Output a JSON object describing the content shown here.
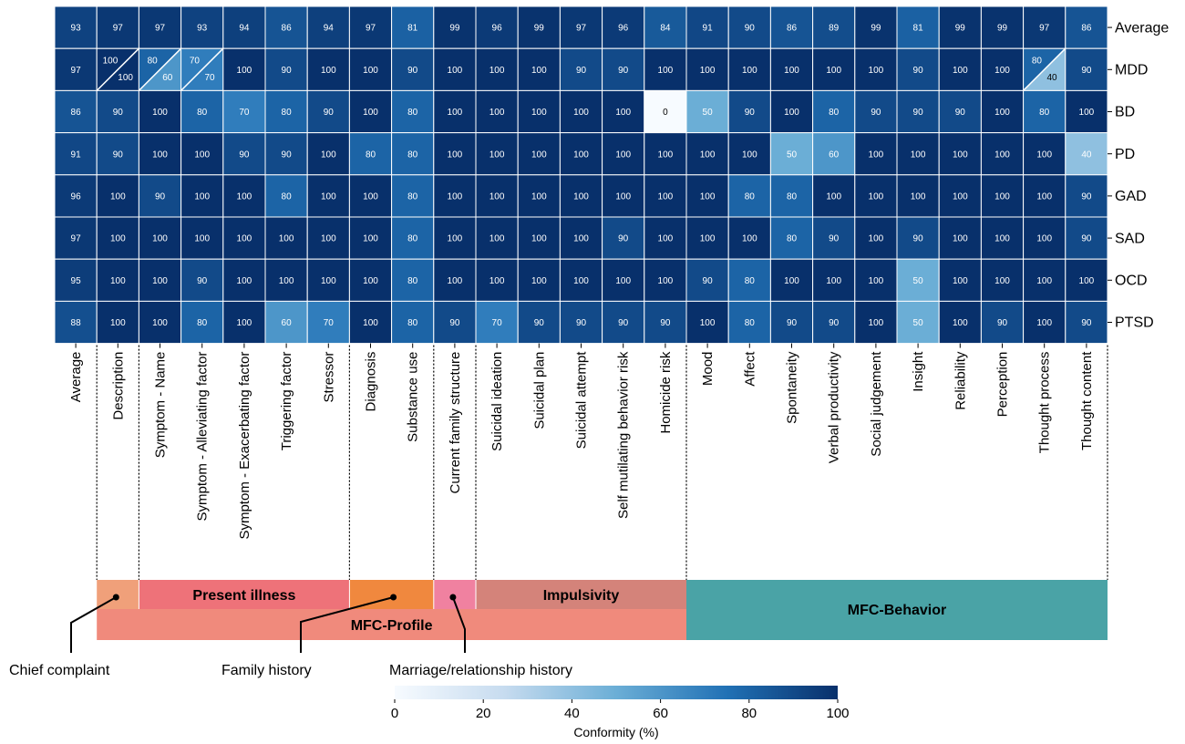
{
  "chart_data": {
    "type": "heatmap",
    "rows": [
      "Average",
      "MDD",
      "BD",
      "PD",
      "GAD",
      "SAD",
      "OCD",
      "PTSD"
    ],
    "columns": [
      "Average",
      "Description",
      "Symptom - Name",
      "Symptom - Alleviating factor",
      "Symptom - Exacerbating factor",
      "Triggering factor",
      "Stressor",
      "Diagnosis",
      "Substance use",
      "Current family structure",
      "Suicidal ideation",
      "Suicidal plan",
      "Suicidal attempt",
      "Self mutilating behavior risk",
      "Homicide risk",
      "Mood",
      "Affect",
      "Spontaneity",
      "Verbal productivity",
      "Social judgement",
      "Insight",
      "Reliability",
      "Perception",
      "Thought process",
      "Thought content"
    ],
    "values": [
      [
        93,
        97,
        97,
        93,
        94,
        86,
        94,
        97,
        81,
        99,
        96,
        99,
        97,
        96,
        84,
        91,
        90,
        86,
        89,
        99,
        81,
        99,
        99,
        97,
        86
      ],
      [
        97,
        null,
        null,
        null,
        100,
        90,
        100,
        100,
        90,
        100,
        100,
        100,
        90,
        90,
        100,
        100,
        100,
        100,
        100,
        100,
        90,
        100,
        100,
        null,
        90
      ],
      [
        86,
        90,
        100,
        80,
        70,
        80,
        90,
        100,
        80,
        100,
        100,
        100,
        100,
        100,
        0,
        50,
        90,
        100,
        80,
        90,
        90,
        90,
        100,
        80,
        100
      ],
      [
        91,
        90,
        100,
        100,
        90,
        90,
        100,
        80,
        80,
        100,
        100,
        100,
        100,
        100,
        100,
        100,
        100,
        50,
        60,
        100,
        100,
        100,
        100,
        100,
        40
      ],
      [
        96,
        100,
        90,
        100,
        100,
        80,
        100,
        100,
        80,
        100,
        100,
        100,
        100,
        100,
        100,
        100,
        80,
        80,
        100,
        100,
        100,
        100,
        100,
        100,
        90
      ],
      [
        97,
        100,
        100,
        100,
        100,
        100,
        100,
        100,
        80,
        100,
        100,
        100,
        100,
        90,
        100,
        100,
        100,
        80,
        90,
        100,
        90,
        100,
        100,
        100,
        90
      ],
      [
        95,
        100,
        100,
        90,
        100,
        100,
        100,
        100,
        80,
        100,
        100,
        100,
        100,
        100,
        100,
        90,
        80,
        100,
        100,
        100,
        50,
        100,
        100,
        100,
        100
      ],
      [
        88,
        100,
        100,
        80,
        100,
        60,
        70,
        100,
        80,
        90,
        70,
        90,
        90,
        90,
        90,
        100,
        80,
        90,
        90,
        100,
        50,
        100,
        90,
        100,
        90
      ]
    ],
    "split_cells": [
      {
        "row": 1,
        "col": 1,
        "upper": 100,
        "lower": 100
      },
      {
        "row": 1,
        "col": 2,
        "upper": 80,
        "lower": 60
      },
      {
        "row": 1,
        "col": 3,
        "upper": 70,
        "lower": 70
      },
      {
        "row": 1,
        "col": 23,
        "upper": 80,
        "lower": 40
      }
    ],
    "groups": [
      {
        "label": "",
        "start": 1,
        "end": 1,
        "color": "#f0a07a"
      },
      {
        "label": "Present illness",
        "start": 2,
        "end": 6,
        "color": "#ee7279"
      },
      {
        "label": "",
        "start": 7,
        "end": 8,
        "color": "#f0883e"
      },
      {
        "label": "",
        "start": 9,
        "end": 9,
        "color": "#f081a0"
      },
      {
        "label": "Impulsivity",
        "start": 10,
        "end": 14,
        "color": "#d4837a"
      }
    ],
    "super_groups": [
      {
        "label": "MFC-Profile",
        "start": 1,
        "end": 14,
        "color": "#f08a7c"
      },
      {
        "label": "MFC-Behavior",
        "start": 15,
        "end": 24,
        "color": "#4aa3a6"
      }
    ],
    "callouts": [
      {
        "label": "Chief complaint",
        "group": 0
      },
      {
        "label": "Family history",
        "group": 2
      },
      {
        "label": "Marriage/relationship history",
        "group": 3
      }
    ],
    "colorbar": {
      "title": "Conformity (%)",
      "range": [
        0,
        100
      ],
      "ticks": [
        0,
        20,
        40,
        60,
        80,
        100
      ],
      "colors": [
        "#f7fbff",
        "#c6dbef",
        "#6baed6",
        "#2171b5",
        "#08306b"
      ]
    }
  }
}
